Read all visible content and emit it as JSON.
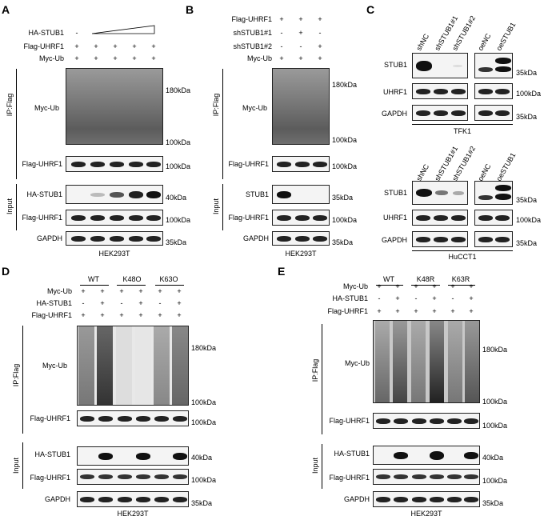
{
  "panels": {
    "A": {
      "letter": "A",
      "rows": {
        "ha_stub1": "HA-STUB1",
        "flag_uhrf1": "Flag-UHRF1",
        "myc_ub": "Myc-Ub"
      },
      "signs": {
        "ha_stub1_first": "-",
        "plus": "+"
      },
      "ip_label": "IP:Flag",
      "input_label": "Input",
      "blots": {
        "myc_ub": "Myc-Ub",
        "flag_uhrf1": "Flag-UHRF1",
        "ha_stub1": "HA-STUB1",
        "gapdh": "GAPDH"
      },
      "markers": {
        "kda180": "180kDa",
        "kda100": "100kDa",
        "kda100b": "100kDa",
        "kda40": "40kDa",
        "kda100c": "100kDa",
        "kda35": "35kDa"
      },
      "cell_line": "HEK293T"
    },
    "B": {
      "letter": "B",
      "rows": {
        "flag_uhrf1": "Flag-UHRF1",
        "sh1": "shSTUB1#1",
        "sh2": "shSTUB1#2",
        "myc_ub": "Myc-Ub"
      },
      "signs": {
        "plus": "+",
        "minus": "-"
      },
      "ip_label": "IP:Flag",
      "input_label": "Input",
      "blots": {
        "myc_ub": "Myc-Ub",
        "flag_uhrf1": "Flag-UHRF1",
        "stub1": "STUB1",
        "flag_uhrf1_in": "Flag-UHRF1",
        "gapdh": "GAPDH"
      },
      "markers": {
        "kda180": "180kDa",
        "kda100": "100kDa",
        "kda100b": "100kDa",
        "kda35": "35kDa",
        "kda100c": "100kDa",
        "kda35b": "35kDa"
      },
      "cell_line": "HEK293T"
    },
    "C": {
      "letter": "C",
      "lanes": [
        "shNC",
        "shSTUB1#1",
        "shSTUB1#2",
        "oeNC",
        "oeSTUB1"
      ],
      "blots": {
        "stub1": "STUB1",
        "uhrf1": "UHRF1",
        "gapdh": "GAPDH"
      },
      "markers": {
        "kda35": "35kDa",
        "kda100": "100kDa",
        "kda35b": "35kDa"
      },
      "cell_top": "TFK1",
      "cell_bottom": "HuCCT1"
    },
    "D": {
      "letter": "D",
      "groups": [
        "WT",
        "K48O",
        "K63O"
      ],
      "rows": {
        "myc_ub": "Myc-Ub",
        "ha_stub1": "HA-STUB1",
        "flag_uhrf1": "Flag-UHRF1"
      },
      "signs": {
        "plus": "+",
        "minus": "-"
      },
      "ip_label": "IP:Flag",
      "input_label": "Input",
      "blots": {
        "myc_ub": "Myc-Ub",
        "flag_uhrf1": "Flag-UHRF1",
        "ha_stub1": "HA-STUB1",
        "flag_uhrf1_in": "Flag-UHRF1",
        "gapdh": "GAPDH"
      },
      "markers": {
        "kda180": "180kDa",
        "kda100": "100kDa",
        "kda100b": "100kDa",
        "kda40": "40kDa",
        "kda100c": "100kDa",
        "kda35": "35kDa"
      },
      "cell_line": "HEK293T"
    },
    "E": {
      "letter": "E",
      "groups": [
        "WT",
        "K48R",
        "K63R"
      ],
      "rows": {
        "myc_ub": "Myc-Ub",
        "ha_stub1": "HA-STUB1",
        "flag_uhrf1": "Flag-UHRF1"
      },
      "signs": {
        "plus": "+",
        "minus": "-"
      },
      "ip_label": "IP:Flag",
      "input_label": "Input",
      "blots": {
        "myc_ub": "Myc-Ub",
        "flag_uhrf1": "Flag-UHRF1",
        "ha_stub1": "HA-STUB1",
        "flag_uhrf1_in": "Flag-UHRF1",
        "gapdh": "GAPDH"
      },
      "markers": {
        "kda180": "180kDa",
        "kda100": "100kDa",
        "kda100b": "100kDa",
        "kda40": "40kDa",
        "kda100c": "100kDa",
        "kda35": "35kDa"
      },
      "cell_line": "HEK293T"
    }
  }
}
